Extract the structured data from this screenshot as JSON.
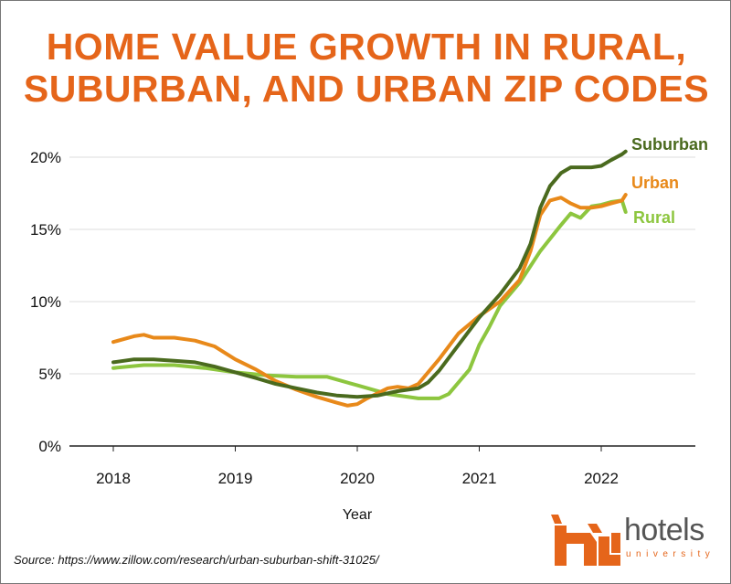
{
  "title_lines": [
    "HOME VALUE GROWTH IN RURAL,",
    "SUBURBAN, AND URBAN ZIP CODES"
  ],
  "source": "Source: https://www.zillow.com/research/urban-suburban-shift-31025/",
  "logo": {
    "main": "hotels",
    "sub": "university"
  },
  "colors": {
    "title": "#e5651a",
    "suburban": "#4a6a1e",
    "urban": "#e8891a",
    "rural": "#8dc63f"
  },
  "chart_data": {
    "type": "line",
    "title": "HOME VALUE GROWTH IN RURAL, SUBURBAN, AND URBAN ZIP CODES",
    "xlabel": "Year",
    "ylabel": "",
    "xlim": [
      2017.6,
      2022.75
    ],
    "ylim": [
      0,
      20
    ],
    "x_ticks": [
      2018,
      2019,
      2020,
      2021,
      2022
    ],
    "x_tick_labels": [
      "2018",
      "2019",
      "2020",
      "2021",
      "2022"
    ],
    "y_ticks": [
      0,
      5,
      10,
      15,
      20
    ],
    "y_tick_labels": [
      "0%",
      "5%",
      "10%",
      "15%",
      "20%"
    ],
    "grid": "horizontal",
    "legend": "inline labels at line ends (right)",
    "series": [
      {
        "name": "Suburban",
        "color_key": "suburban",
        "x": [
          2018.0,
          2018.17,
          2018.33,
          2018.5,
          2018.67,
          2018.83,
          2019.0,
          2019.17,
          2019.33,
          2019.5,
          2019.67,
          2019.83,
          2020.0,
          2020.17,
          2020.33,
          2020.5,
          2020.58,
          2020.67,
          2020.83,
          2021.0,
          2021.17,
          2021.33,
          2021.42,
          2021.5,
          2021.58,
          2021.67,
          2021.75,
          2021.83,
          2021.92,
          2022.0,
          2022.08,
          2022.17,
          2022.2
        ],
        "y": [
          5.8,
          6.0,
          6.0,
          5.9,
          5.8,
          5.5,
          5.1,
          4.7,
          4.3,
          4.0,
          3.7,
          3.5,
          3.4,
          3.5,
          3.8,
          4.0,
          4.4,
          5.2,
          7.0,
          8.9,
          10.5,
          12.3,
          14.0,
          16.5,
          18.0,
          18.9,
          19.3,
          19.3,
          19.3,
          19.4,
          19.8,
          20.2,
          20.4
        ]
      },
      {
        "name": "Urban",
        "color_key": "urban",
        "x": [
          2018.0,
          2018.17,
          2018.25,
          2018.33,
          2018.5,
          2018.67,
          2018.83,
          2019.0,
          2019.17,
          2019.33,
          2019.5,
          2019.67,
          2019.83,
          2019.92,
          2020.0,
          2020.08,
          2020.25,
          2020.33,
          2020.42,
          2020.5,
          2020.67,
          2020.83,
          2021.0,
          2021.17,
          2021.33,
          2021.42,
          2021.5,
          2021.58,
          2021.67,
          2021.75,
          2021.83,
          2021.92,
          2022.0,
          2022.08,
          2022.17,
          2022.2
        ],
        "y": [
          7.2,
          7.6,
          7.7,
          7.5,
          7.5,
          7.3,
          6.9,
          6.0,
          5.3,
          4.5,
          3.9,
          3.4,
          3.0,
          2.8,
          2.9,
          3.3,
          4.0,
          4.1,
          4.0,
          4.3,
          6.0,
          7.8,
          9.0,
          10.0,
          11.5,
          13.5,
          16.0,
          17.0,
          17.2,
          16.8,
          16.5,
          16.5,
          16.6,
          16.8,
          17.0,
          17.4
        ]
      },
      {
        "name": "Rural",
        "color_key": "rural",
        "x": [
          2018.0,
          2018.25,
          2018.5,
          2018.75,
          2019.0,
          2019.25,
          2019.5,
          2019.75,
          2020.0,
          2020.25,
          2020.5,
          2020.67,
          2020.75,
          2020.92,
          2021.0,
          2021.08,
          2021.17,
          2021.33,
          2021.5,
          2021.67,
          2021.75,
          2021.83,
          2021.92,
          2022.0,
          2022.08,
          2022.17,
          2022.2
        ],
        "y": [
          5.4,
          5.6,
          5.6,
          5.4,
          5.1,
          4.9,
          4.8,
          4.8,
          4.2,
          3.6,
          3.3,
          3.3,
          3.6,
          5.3,
          7.0,
          8.2,
          9.7,
          11.3,
          13.5,
          15.3,
          16.1,
          15.8,
          16.6,
          16.7,
          16.9,
          17.0,
          16.2
        ]
      }
    ]
  }
}
